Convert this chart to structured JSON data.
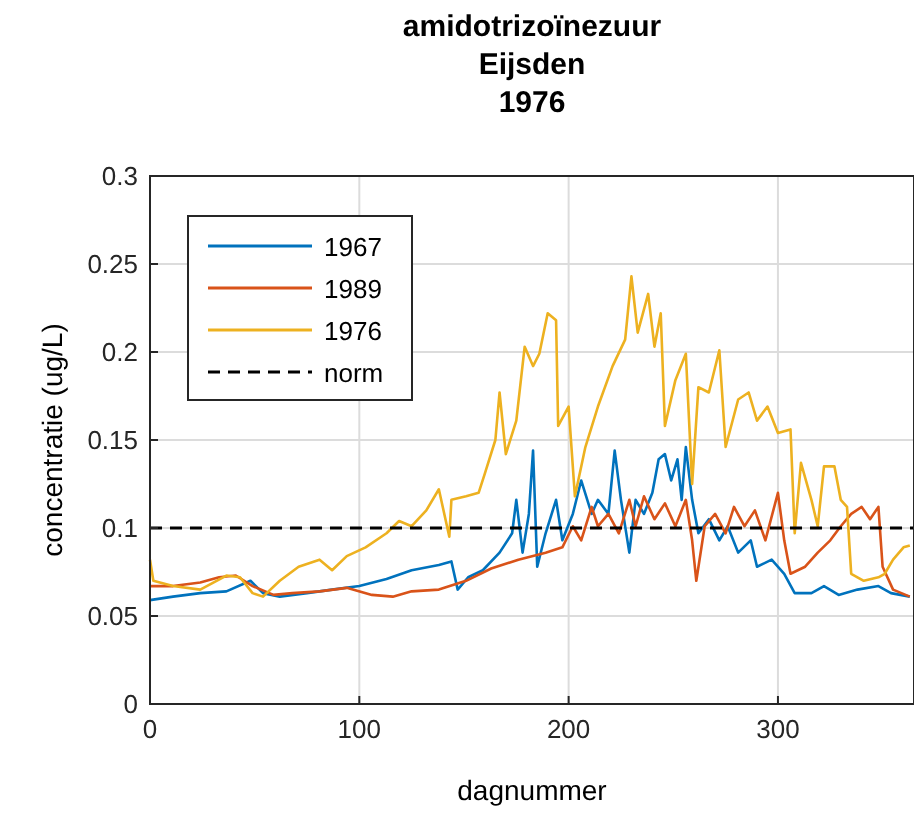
{
  "chart_data": {
    "type": "line",
    "title": "amidotrizoïnezuur\nEijsden\n1976",
    "xlabel": "dagnummer",
    "ylabel": "concentratie (ug/L)",
    "xlim": [
      0,
      365
    ],
    "ylim": [
      0,
      0.3
    ],
    "xticks": [
      0,
      100,
      200,
      300
    ],
    "yticks": [
      0,
      0.05,
      0.1,
      0.15,
      0.2,
      0.25,
      0.3
    ],
    "grid": true,
    "legend": "top left",
    "line_style": "solid",
    "series": [
      {
        "name": "1967",
        "color": "#0072bd",
        "x": [
          0,
          11,
          24,
          36.5,
          48,
          54,
          62,
          75,
          87,
          100,
          113,
          125,
          138,
          144,
          147,
          152,
          159,
          167,
          173,
          175,
          178,
          181,
          183,
          185,
          189,
          194,
          197,
          202,
          206,
          211,
          214,
          219,
          222,
          225,
          229,
          232,
          236,
          240,
          243,
          246,
          249,
          252,
          254,
          256,
          259,
          262,
          267,
          272,
          276,
          281,
          287,
          290,
          297,
          303,
          308,
          316,
          322,
          329,
          338,
          348,
          354,
          363
        ],
        "values": [
          0.059,
          0.061,
          0.063,
          0.064,
          0.07,
          0.063,
          0.061,
          0.063,
          0.065,
          0.067,
          0.071,
          0.076,
          0.079,
          0.081,
          0.065,
          0.072,
          0.076,
          0.086,
          0.097,
          0.116,
          0.086,
          0.108,
          0.144,
          0.078,
          0.097,
          0.116,
          0.093,
          0.108,
          0.127,
          0.108,
          0.116,
          0.108,
          0.144,
          0.116,
          0.086,
          0.116,
          0.108,
          0.12,
          0.139,
          0.142,
          0.127,
          0.139,
          0.116,
          0.146,
          0.116,
          0.097,
          0.105,
          0.093,
          0.101,
          0.086,
          0.093,
          0.078,
          0.082,
          0.074,
          0.063,
          0.063,
          0.067,
          0.062,
          0.065,
          0.067,
          0.063,
          0.061
        ]
      },
      {
        "name": "1989",
        "color": "#d95319",
        "x": [
          0,
          11,
          24,
          33,
          41,
          49,
          59,
          68,
          81,
          94,
          106,
          116,
          125,
          138,
          151,
          163,
          176,
          189,
          197,
          202,
          206,
          211,
          214,
          219,
          224,
          229,
          232,
          236,
          241,
          246,
          251,
          256,
          259,
          261,
          265,
          270,
          275,
          279,
          284,
          289,
          294,
          300,
          303,
          306,
          313,
          319,
          325,
          330,
          335,
          340,
          344,
          348,
          350,
          355,
          363
        ],
        "values": [
          0.067,
          0.067,
          0.069,
          0.072,
          0.073,
          0.067,
          0.062,
          0.063,
          0.064,
          0.066,
          0.062,
          0.061,
          0.064,
          0.065,
          0.07,
          0.077,
          0.082,
          0.086,
          0.089,
          0.101,
          0.093,
          0.112,
          0.101,
          0.108,
          0.097,
          0.116,
          0.101,
          0.118,
          0.105,
          0.114,
          0.101,
          0.116,
          0.093,
          0.07,
          0.101,
          0.108,
          0.097,
          0.112,
          0.101,
          0.11,
          0.093,
          0.12,
          0.093,
          0.074,
          0.078,
          0.086,
          0.093,
          0.101,
          0.108,
          0.112,
          0.105,
          0.112,
          0.078,
          0.065,
          0.061
        ]
      },
      {
        "name": "1976",
        "color": "#edb120",
        "x": [
          0,
          1.6,
          11,
          24,
          36.5,
          43,
          49,
          54,
          62,
          71,
          81,
          87,
          94,
          103,
          113,
          119,
          125,
          132,
          138,
          143,
          144,
          151,
          157,
          160,
          165,
          167,
          170,
          175,
          179,
          183,
          186,
          190,
          194,
          195,
          200,
          203,
          208,
          214,
          221,
          227,
          230,
          233,
          238,
          241,
          244,
          246,
          251,
          256,
          259,
          262,
          267,
          272,
          275,
          281,
          286,
          290,
          295,
          300,
          306,
          308,
          311,
          316,
          319,
          322,
          327,
          330,
          333,
          335,
          341,
          348,
          351,
          355,
          360,
          363
        ],
        "values": [
          0.082,
          0.07,
          0.067,
          0.065,
          0.073,
          0.072,
          0.063,
          0.061,
          0.07,
          0.078,
          0.082,
          0.076,
          0.084,
          0.089,
          0.097,
          0.104,
          0.101,
          0.11,
          0.122,
          0.095,
          0.116,
          0.118,
          0.12,
          0.131,
          0.15,
          0.177,
          0.142,
          0.161,
          0.203,
          0.192,
          0.199,
          0.222,
          0.218,
          0.158,
          0.169,
          0.118,
          0.146,
          0.169,
          0.192,
          0.207,
          0.243,
          0.211,
          0.233,
          0.203,
          0.222,
          0.158,
          0.184,
          0.199,
          0.125,
          0.18,
          0.177,
          0.201,
          0.146,
          0.173,
          0.177,
          0.161,
          0.169,
          0.154,
          0.156,
          0.097,
          0.137,
          0.116,
          0.101,
          0.135,
          0.135,
          0.116,
          0.112,
          0.074,
          0.07,
          0.072,
          0.074,
          0.082,
          0.089,
          0.09
        ]
      }
    ],
    "ref_lines": [
      {
        "axis": "y",
        "value": 0.1,
        "label": "norm",
        "color": "#000000",
        "line_style": "dashed"
      }
    ]
  }
}
